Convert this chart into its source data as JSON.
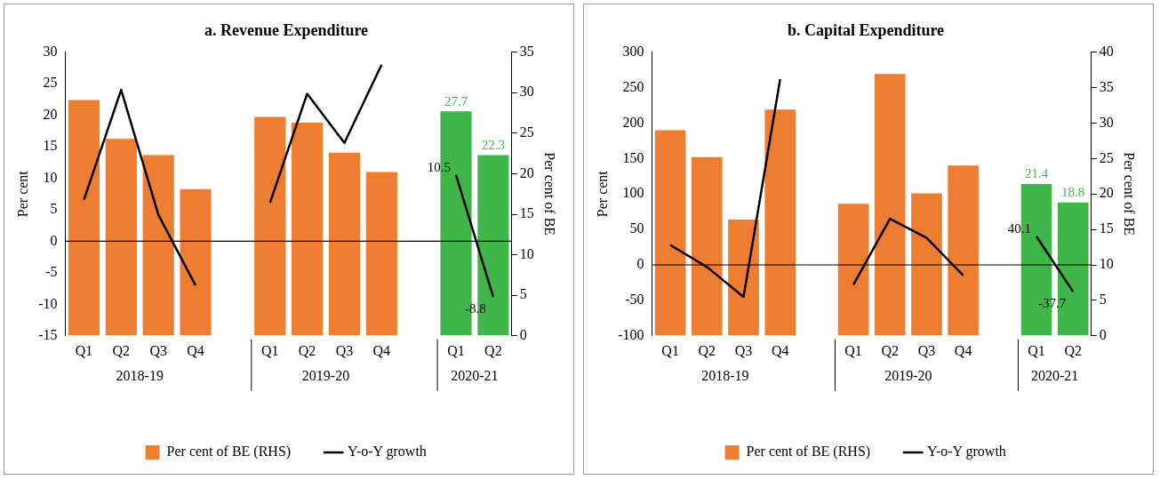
{
  "chart_data": [
    {
      "type": "bar",
      "title": "a. Revenue Expenditure",
      "ylabel": "Per cent",
      "y2label": "Per cent of BE",
      "categories": [
        "Q1",
        "Q2",
        "Q3",
        "Q4",
        null,
        "Q1",
        "Q2",
        "Q3",
        "Q4",
        null,
        "Q1",
        "Q2"
      ],
      "series": [
        {
          "name": "Per cent of BE (RHS)",
          "axis": "y2",
          "color": "#ed7d31",
          "colors": [
            "#ed7d31",
            "#ed7d31",
            "#ed7d31",
            "#ed7d31",
            "#ed7d31",
            "#ed7d31",
            "#ed7d31",
            "#ed7d31",
            "#ed7d31",
            "#ed7d31",
            "#40b54a",
            "#40b54a"
          ],
          "values": [
            29.1,
            24.3,
            22.3,
            18.1,
            null,
            27.0,
            26.3,
            22.6,
            20.2,
            null,
            27.7,
            22.3
          ],
          "value_labels": [
            null,
            null,
            null,
            null,
            null,
            null,
            null,
            null,
            null,
            null,
            "27.7",
            "22.3"
          ]
        },
        {
          "name": "Y-o-Y growth",
          "type": "line",
          "axis": "y",
          "color": "#000000",
          "values": [
            6.6,
            24.0,
            4.2,
            -7.0,
            null,
            6.1,
            23.4,
            15.6,
            28.0,
            null,
            10.5,
            -8.8
          ],
          "value_labels": [
            null,
            null,
            null,
            null,
            null,
            null,
            null,
            null,
            null,
            null,
            "10.5",
            "-8.8"
          ]
        }
      ],
      "ylim": [
        -15,
        30
      ],
      "yticks": [
        -15,
        -10,
        -5,
        0,
        5,
        10,
        15,
        20,
        25,
        30
      ],
      "ref_lines": [
        {
          "axis": "y",
          "value": 0,
          "color": "#000000"
        }
      ],
      "y2lim": [
        0,
        35
      ],
      "y2ticks": [
        0,
        5,
        10,
        15,
        20,
        25,
        30,
        35
      ],
      "annotations": [
        "2018-19",
        "2019-20",
        "2020-21"
      ],
      "legend": "bottom",
      "grid": false,
      "marker": "none"
    },
    {
      "type": "bar",
      "title": "b. Capital Expenditure",
      "ylabel": "Per cent",
      "y2label": "Per cent of BE",
      "categories": [
        "Q1",
        "Q2",
        "Q3",
        "Q4",
        null,
        "Q1",
        "Q2",
        "Q3",
        "Q4",
        null,
        "Q1",
        "Q2"
      ],
      "series": [
        {
          "name": "Per cent of BE (RHS)",
          "axis": "y2",
          "color": "#ed7d31",
          "colors": [
            "#ed7d31",
            "#ed7d31",
            "#ed7d31",
            "#ed7d31",
            "#ed7d31",
            "#ed7d31",
            "#ed7d31",
            "#ed7d31",
            "#ed7d31",
            "#ed7d31",
            "#40b54a",
            "#40b54a"
          ],
          "values": [
            29.0,
            25.2,
            16.4,
            31.9,
            null,
            18.6,
            36.9,
            20.1,
            24.0,
            null,
            21.4,
            18.8
          ],
          "value_labels": [
            null,
            null,
            null,
            null,
            null,
            null,
            null,
            null,
            null,
            null,
            "21.4",
            "18.8"
          ]
        },
        {
          "name": "Y-o-Y growth",
          "type": "line",
          "axis": "y",
          "color": "#000000",
          "values": [
            28,
            -3,
            -45,
            262,
            null,
            -28,
            65,
            38,
            -15,
            null,
            40.1,
            -37.7
          ],
          "value_labels": [
            null,
            null,
            null,
            null,
            null,
            null,
            null,
            null,
            null,
            null,
            "40.1",
            "-37.7"
          ]
        }
      ],
      "ylim": [
        -100,
        300
      ],
      "yticks": [
        -100,
        -50,
        0,
        50,
        100,
        150,
        200,
        250,
        300
      ],
      "ref_lines": [
        {
          "axis": "y",
          "value": 0,
          "color": "#000000"
        }
      ],
      "y2lim": [
        0,
        40
      ],
      "y2ticks": [
        0,
        5,
        10,
        15,
        20,
        25,
        30,
        35,
        40
      ],
      "annotations": [
        "2018-19",
        "2019-20",
        "2020-21"
      ],
      "legend": "bottom",
      "grid": false,
      "marker": "none"
    }
  ]
}
